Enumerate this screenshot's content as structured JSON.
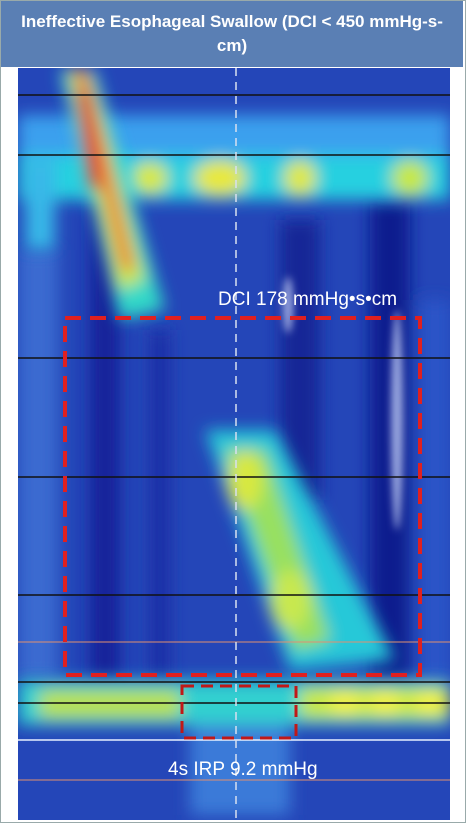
{
  "header": {
    "title": "Ineffective Esophageal Swallow (DCI < 450 mmHg-s-cm)"
  },
  "annotations": {
    "dci": "DCI 178 mmHg•s•cm",
    "irp": "4s IRP 9.2 mmHg"
  }
}
